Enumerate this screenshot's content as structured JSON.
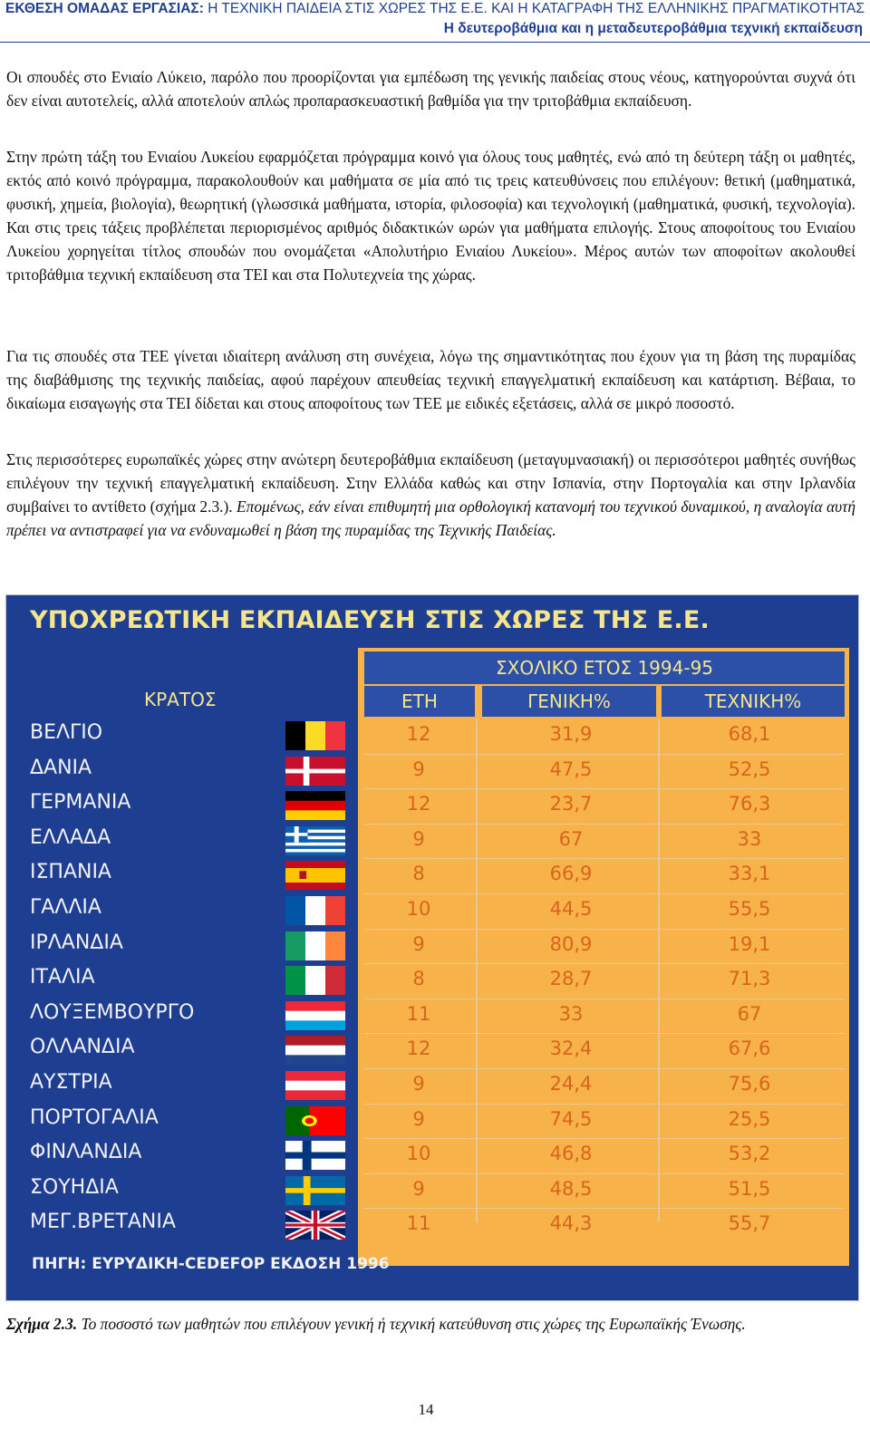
{
  "header": {
    "title_bold": "ΕΚΘΕΣΗ ΟΜΑΔΑΣ ΕΡΓΑΣΙΑΣ:",
    "title_rest": " Η ΤΕΧΝΙΚΗ ΠΑΙΔΕΙΑ ΣΤΙΣ ΧΩΡΕΣ ΤΗΣ Ε.Ε. ΚΑΙ Η ΚΑΤΑΓΡΑΦΗ ΤΗΣ ΕΛΛΗΝΙΚΗΣ ΠΡΑΓΜΑΤΙΚΟΤΗΤΑΣ",
    "subtitle": "Η δευτεροβάθμια και η μεταδευτεροβάθμια τεχνική εκπαίδευση"
  },
  "paragraphs": [
    "Οι σπουδές στο Ενιαίο Λύκειο, παρόλο που προορίζονται για εμπέδωση της γενικής παιδείας στους νέους, κατηγορούνται συχνά ότι δεν είναι αυτοτελείς, αλλά αποτελούν απλώς προπαρασκευαστική βαθμίδα για την τριτοβάθμια εκπαίδευση.",
    "Στην πρώτη τάξη του Ενιαίου Λυκείου εφαρμόζεται πρόγραμμα κοινό για όλους τους μαθητές, ενώ από τη δεύτερη τάξη οι μαθητές, εκτός από κοινό πρόγραμμα, παρακολουθούν και μαθήματα σε μία από τις τρεις κατευθύνσεις που επιλέγουν: θετική (μαθηματικά, φυσική, χημεία, βιολογία), θεωρητική (γλωσσικά μαθήματα, ιστορία, φιλοσοφία) και τεχνολογική (μαθηματικά, φυσική, τεχνολογία). Και στις τρεις τάξεις προβλέπεται περιορισμένος αριθμός διδακτικών ωρών για μαθήματα επιλογής. Στους αποφοίτους του Ενιαίου Λυκείου χορηγείται τίτλος σπουδών που ονομάζεται «Απολυτήριο Ενιαίου Λυκείου». Μέρος αυτών των αποφοίτων ακολουθεί τριτοβάθμια τεχνική εκπαίδευση στα ΤΕΙ και στα Πολυτεχνεία της χώρας.",
    "Για τις σπουδές στα ΤΕΕ γίνεται ιδιαίτερη ανάλυση στη συνέχεια, λόγω της σημαντικότητας που έχουν για τη βάση της πυραμίδας της διαβάθμισης της τεχνικής παιδείας, αφού παρέχουν απευθείας τεχνική επαγγελματική εκπαίδευση και κατάρτιση. Βέβαια, το δικαίωμα εισαγωγής στα ΤΕΙ δίδεται και στους αποφοίτους των ΤΕΕ με ειδικές εξετάσεις, αλλά σε μικρό ποσοστό.",
    "Στις περισσότερες ευρωπαϊκές χώρες στην ανώτερη δευτεροβάθμια εκπαίδευση (μεταγυμνασιακή) οι περισσότεροι μαθητές συνήθως επιλέγουν την τεχνική επαγγελματική εκπαίδευση. Στην Ελλάδα καθώς και στην Ισπανία, στην Πορτογαλία και στην Ιρλανδία συμβαίνει το αντίθετο (σχήμα 2.3.). "
  ],
  "paragraph4_italic": "Επομένως, εάν είναι επιθυμητή μια ορθολογική κατανομή του τεχνικού δυναμικού, η αναλογία αυτή πρέπει να αντιστραφεί για να ενδυναμωθεί η βάση της πυραμίδας της Τεχνικής Παιδείας.",
  "figure": {
    "title": "ΥΠΟΧΡΕΩΤΙΚΗ ΕΚΠΑΙΔΕΥΣΗ ΣΤΙΣ ΧΩΡΕΣ ΤΗΣ Ε.Ε.",
    "school_year": "ΣΧΟΛΙΚΟ ΕΤΟΣ 1994-95",
    "headers": {
      "country": "ΚΡΑΤΟΣ",
      "years": "ΕΤΗ",
      "general": "ΓΕΝΙΚΗ%",
      "technical": "ΤΕΧΝΙΚΗ%"
    },
    "source": "ΠΗΓΗ: ΕΥΡΥΔΙΚΗ-CEDEFOP ΕΚΔΟΣΗ 1996",
    "colors": {
      "background": "#1e3e92",
      "panel": "#f7b24a",
      "header_band": "#2c4fa8",
      "header_text": "#f6e58a",
      "value_text": "#d8651c"
    }
  },
  "chart_data": {
    "type": "table",
    "title": "ΥΠΟΧΡΕΩΤΙΚΗ ΕΚΠΑΙΔΕΥΣΗ ΣΤΙΣ ΧΩΡΕΣ ΤΗΣ Ε.Ε.",
    "subtitle": "ΣΧΟΛΙΚΟ ΕΤΟΣ 1994-95",
    "columns": [
      "ΚΡΑΤΟΣ",
      "ΕΤΗ",
      "ΓΕΝΙΚΗ%",
      "ΤΕΧΝΙΚΗ%"
    ],
    "rows": [
      {
        "country": "ΒΕΛΓΙΟ",
        "flag": "belgium-flag-icon",
        "years": "12",
        "general": "31,9",
        "technical": "68,1"
      },
      {
        "country": "ΔΑΝΙΑ",
        "flag": "denmark-flag-icon",
        "years": "9",
        "general": "47,5",
        "technical": "52,5"
      },
      {
        "country": "ΓΕΡΜΑΝΙΑ",
        "flag": "germany-flag-icon",
        "years": "12",
        "general": "23,7",
        "technical": "76,3"
      },
      {
        "country": "ΕΛΛΑΔΑ",
        "flag": "greece-flag-icon",
        "years": "9",
        "general": "67",
        "technical": "33"
      },
      {
        "country": "ΙΣΠΑΝΙΑ",
        "flag": "spain-flag-icon",
        "years": "8",
        "general": "66,9",
        "technical": "33,1"
      },
      {
        "country": "ΓΑΛΛΙΑ",
        "flag": "france-flag-icon",
        "years": "10",
        "general": "44,5",
        "technical": "55,5"
      },
      {
        "country": "ΙΡΛΑΝΔΙΑ",
        "flag": "ireland-flag-icon",
        "years": "9",
        "general": "80,9",
        "technical": "19,1"
      },
      {
        "country": "ΙΤΑΛΙΑ",
        "flag": "italy-flag-icon",
        "years": "8",
        "general": "28,7",
        "technical": "71,3"
      },
      {
        "country": "ΛΟΥΞΕΜΒΟΥΡΓΟ",
        "flag": "luxembourg-flag-icon",
        "years": "11",
        "general": "33",
        "technical": "67"
      },
      {
        "country": "ΟΛΛΑΝΔΙΑ",
        "flag": "netherlands-flag-icon",
        "years": "12",
        "general": "32,4",
        "technical": "67,6"
      },
      {
        "country": "ΑΥΣΤΡΙΑ",
        "flag": "austria-flag-icon",
        "years": "9",
        "general": "24,4",
        "technical": "75,6"
      },
      {
        "country": "ΠΟΡΤΟΓΑΛΙΑ",
        "flag": "portugal-flag-icon",
        "years": "9",
        "general": "74,5",
        "technical": "25,5"
      },
      {
        "country": "ΦΙΝΛΑΝΔΙΑ",
        "flag": "finland-flag-icon",
        "years": "10",
        "general": "46,8",
        "technical": "53,2"
      },
      {
        "country": "ΣΟΥΗΔΙΑ",
        "flag": "sweden-flag-icon",
        "years": "9",
        "general": "48,5",
        "technical": "51,5"
      },
      {
        "country": "ΜΕΓ.ΒΡΕΤΑΝΙΑ",
        "flag": "uk-flag-icon",
        "years": "11",
        "general": "44,3",
        "technical": "55,7"
      }
    ]
  },
  "caption": {
    "label": "Σχήμα 2.3.",
    "text": " Το ποσοστό των μαθητών που επιλέγουν γενική ή τεχνική κατεύθυνση στις χώρες της Ευρωπαϊκής Ένωσης."
  },
  "page_number": "14"
}
